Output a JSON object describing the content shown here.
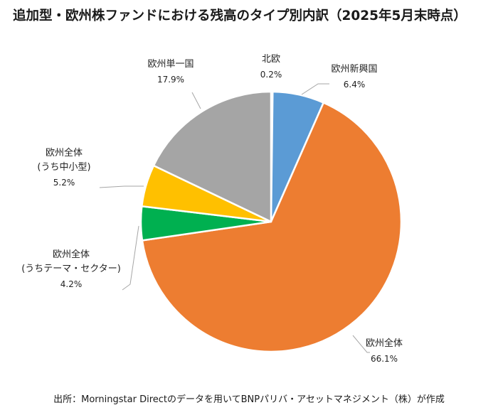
{
  "title": "追加型・欧州株ファンドにおける残高のタイプ別内訳（2025年5月末時点）",
  "source": "出所：Morningstar Directのデータを用いてBNPパリバ・アセットマネジメント（株）が作成",
  "chart_data": {
    "type": "pie",
    "title": "追加型・欧州株ファンドにおける残高のタイプ別内訳（2025年5月末時点）",
    "slices": [
      {
        "label": [
          "北欧"
        ],
        "value": 0.2,
        "value_label": "0.2%",
        "color": "#264478"
      },
      {
        "label": [
          "欧州新興国"
        ],
        "value": 6.4,
        "value_label": "6.4%",
        "color": "#5b9bd5"
      },
      {
        "label": [
          "欧州全体"
        ],
        "value": 66.1,
        "value_label": "66.1%",
        "color": "#ed7d31"
      },
      {
        "label": [
          "欧州全体",
          "(うちテーマ・セクター)"
        ],
        "value": 4.2,
        "value_label": "4.2%",
        "color": "#00b050"
      },
      {
        "label": [
          "欧州全体",
          "(うち中小型)"
        ],
        "value": 5.2,
        "value_label": "5.2%",
        "color": "#ffc000"
      },
      {
        "label": [
          "欧州単一国"
        ],
        "value": 17.9,
        "value_label": "17.9%",
        "color": "#a5a5a5"
      }
    ]
  }
}
